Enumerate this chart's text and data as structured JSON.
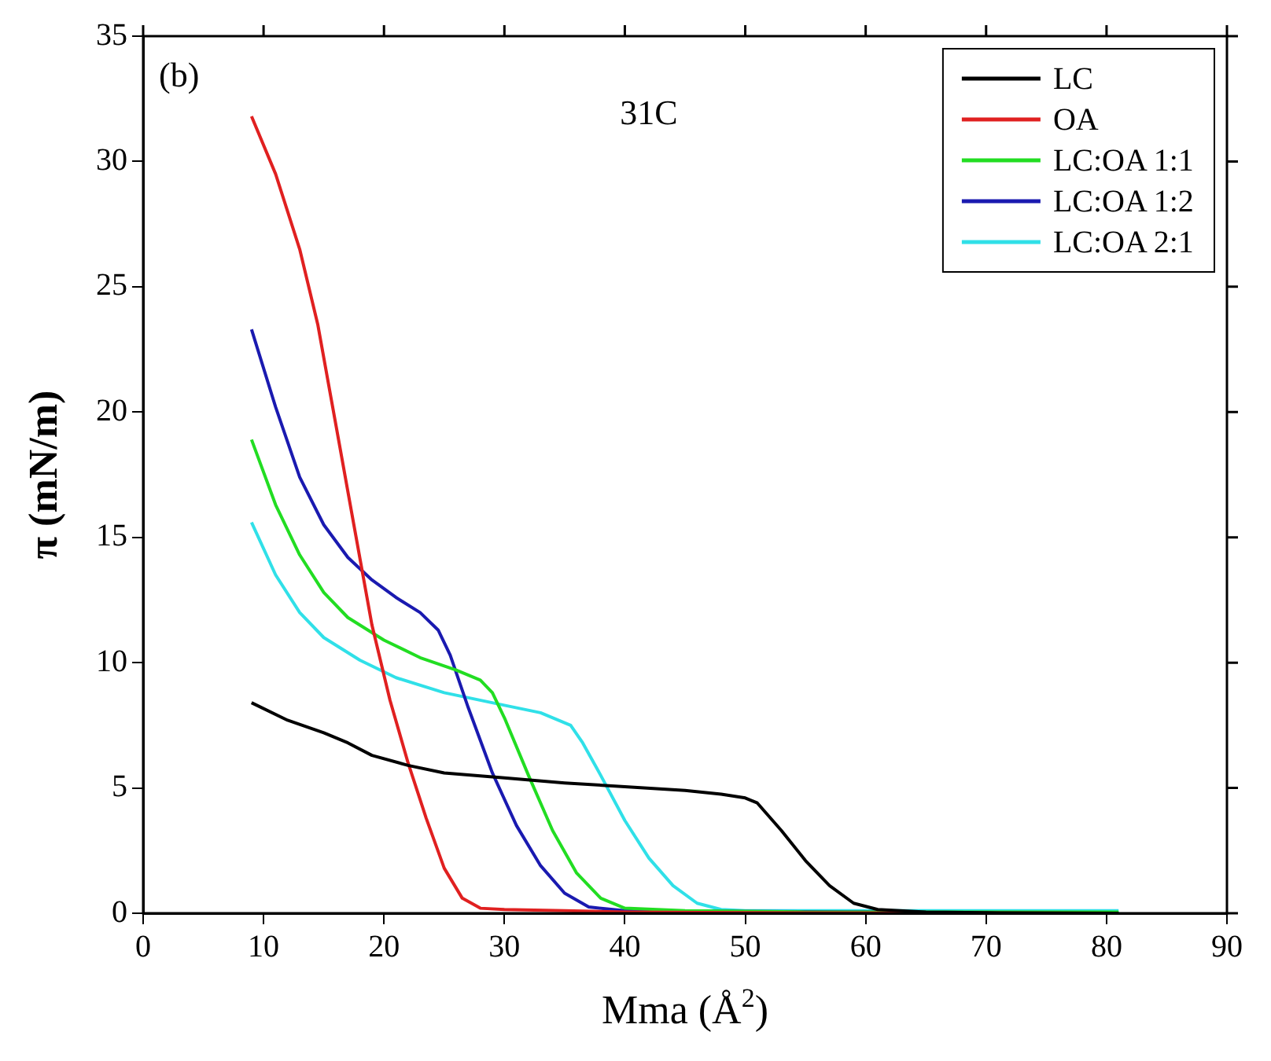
{
  "chart_data": {
    "type": "line",
    "xlabel": "Mma (Å$^{2}$)",
    "ylabel": "π (mN/m)",
    "annotations": [
      "(b)",
      "31C"
    ],
    "xlim": [
      0,
      90
    ],
    "xticks": [
      0,
      10,
      20,
      30,
      40,
      50,
      60,
      70,
      80,
      90
    ],
    "ylim": [
      0,
      35
    ],
    "yticks": [
      0,
      5,
      10,
      15,
      20,
      25,
      30,
      35
    ],
    "grid": false,
    "legend": "top right",
    "marker": "none",
    "line_style": "solid",
    "series": [
      {
        "name": "LC",
        "color": "#000000",
        "x": [
          9,
          12,
          15,
          17,
          19,
          22,
          25,
          30,
          35,
          40,
          45,
          48,
          50,
          51,
          53,
          55,
          57,
          59,
          61,
          65,
          70,
          81
        ],
        "values": [
          8.4,
          7.7,
          7.2,
          6.8,
          6.3,
          5.9,
          5.6,
          5.4,
          5.2,
          5.05,
          4.9,
          4.75,
          4.6,
          4.4,
          3.3,
          2.1,
          1.1,
          0.4,
          0.15,
          0.05,
          0.02,
          0
        ]
      },
      {
        "name": "OA",
        "color": "#e02020",
        "x": [
          9,
          11,
          13,
          14.5,
          16,
          17.5,
          19,
          20.5,
          22,
          23.5,
          25,
          26.5,
          28,
          30,
          35,
          40,
          50,
          81
        ],
        "values": [
          31.8,
          29.5,
          26.5,
          23.5,
          19.5,
          15.5,
          11.5,
          8.5,
          6,
          3.8,
          1.8,
          0.6,
          0.2,
          0.15,
          0.1,
          0.05,
          0.02,
          0
        ]
      },
      {
        "name": "LC:OA 1:1",
        "color": "#22dd22",
        "x": [
          9,
          11,
          13,
          15,
          17,
          20,
          23,
          26,
          28,
          29,
          30,
          32,
          34,
          36,
          38,
          40,
          45,
          55,
          81
        ],
        "values": [
          18.9,
          16.3,
          14.3,
          12.8,
          11.8,
          10.9,
          10.2,
          9.7,
          9.3,
          8.8,
          7.8,
          5.5,
          3.3,
          1.6,
          0.6,
          0.2,
          0.1,
          0.05,
          0.05
        ]
      },
      {
        "name": "LC:OA 1:2",
        "color": "#1a1ab0",
        "x": [
          9,
          11,
          13,
          15,
          17,
          19,
          21,
          23,
          24.5,
          25.5,
          27,
          29,
          31,
          33,
          35,
          37,
          40,
          81
        ],
        "values": [
          23.3,
          20.2,
          17.4,
          15.5,
          14.2,
          13.3,
          12.6,
          12,
          11.3,
          10.3,
          8.2,
          5.6,
          3.5,
          1.9,
          0.8,
          0.25,
          0.1,
          0
        ]
      },
      {
        "name": "LC:OA 2:1",
        "color": "#30e0e8",
        "x": [
          9,
          11,
          13,
          15,
          18,
          21,
          25,
          30,
          33,
          35.5,
          36.5,
          38,
          40,
          42,
          44,
          46,
          48,
          50,
          60,
          81
        ],
        "values": [
          15.6,
          13.5,
          12,
          11,
          10.1,
          9.4,
          8.8,
          8.3,
          8,
          7.5,
          6.8,
          5.5,
          3.7,
          2.2,
          1.1,
          0.4,
          0.15,
          0.1,
          0.1,
          0.1
        ]
      }
    ]
  }
}
